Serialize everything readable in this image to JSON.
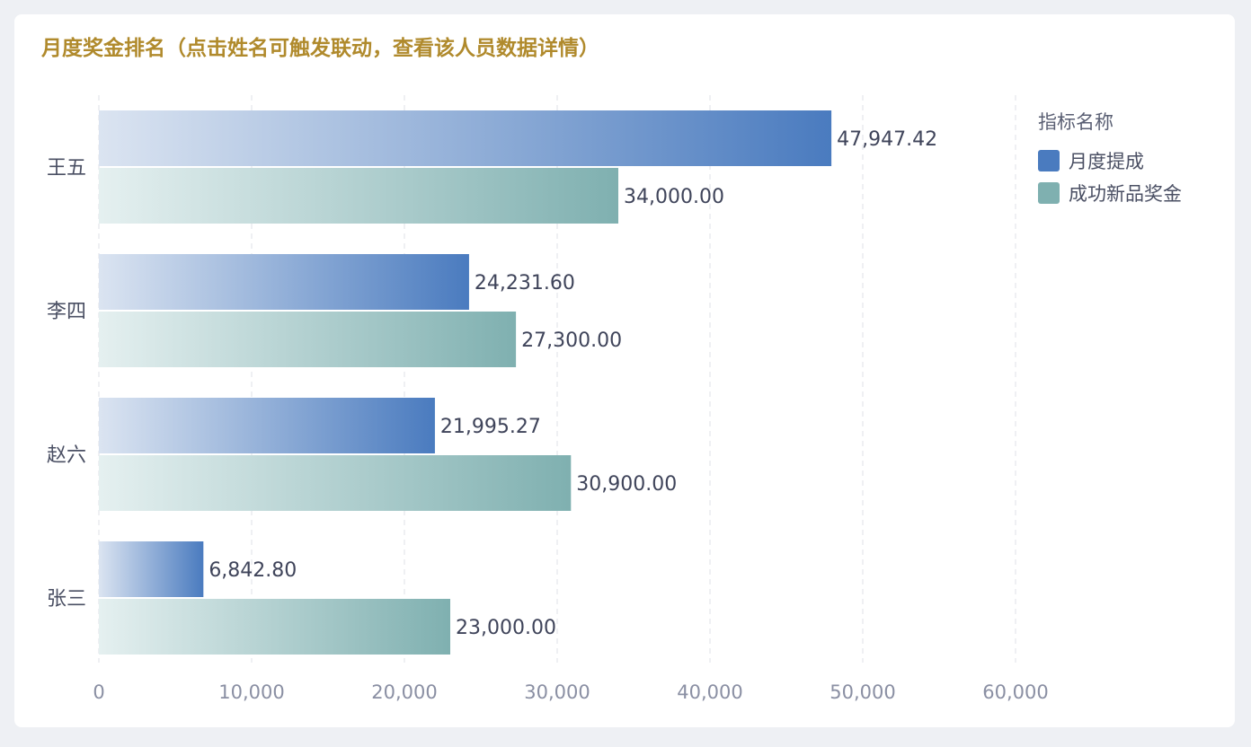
{
  "title": "月度奖金排名（点击姓名可触发联动，查看该人员数据详情）",
  "chart_data": {
    "type": "bar",
    "orientation": "horizontal",
    "categories": [
      "王五",
      "李四",
      "赵六",
      "张三"
    ],
    "series": [
      {
        "name": "月度提成",
        "values": [
          47947.42,
          24231.6,
          21995.27,
          6842.8
        ],
        "labels": [
          "47,947.42",
          "24,231.60",
          "21,995.27",
          "6,842.80"
        ],
        "color": "#4a7bbf"
      },
      {
        "name": "成功新品奖金",
        "values": [
          34000.0,
          27300.0,
          30900.0,
          23000.0
        ],
        "labels": [
          "34,000.00",
          "27,300.00",
          "30,900.00",
          "23,000.00"
        ],
        "color": "#7fb0b0"
      }
    ],
    "xticks": [
      "0",
      "10,000",
      "20,000",
      "30,000",
      "40,000",
      "50,000",
      "60,000"
    ],
    "xlim": [
      0,
      60000
    ],
    "grid": true,
    "legend_position": "top-right",
    "legend_title": "指标名称"
  }
}
